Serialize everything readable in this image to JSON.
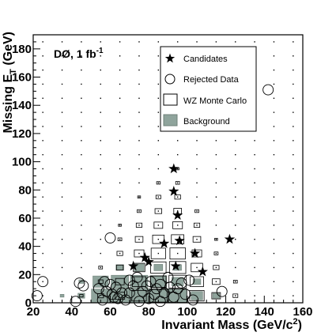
{
  "chart_data": {
    "type": "scatter",
    "annotation": "DØ, 1 fb",
    "annotation_sup": "-1",
    "xlabel": "Invariant Mass (GeV/c",
    "xlabel_sup": "2",
    "xlabel_end": ")",
    "ylabel": "Missing E",
    "ylabel_sub": "T",
    "ylabel_end": " (GeV)",
    "xlim": [
      20,
      160
    ],
    "ylim": [
      0,
      190
    ],
    "xticks": [
      20,
      40,
      60,
      80,
      100,
      120,
      140,
      160
    ],
    "yticks": [
      0,
      20,
      40,
      60,
      80,
      100,
      120,
      140,
      160,
      180
    ],
    "legend": {
      "placement": "top-right",
      "entries": [
        {
          "label": "Candidates",
          "marker": "star"
        },
        {
          "label": "Rejected Data",
          "marker": "open-circle"
        },
        {
          "label": "WZ Monte Carlo",
          "marker": "open-box"
        },
        {
          "label": "Background",
          "marker": "filled-box"
        }
      ]
    },
    "colors": {
      "background_fill": "#8fa49c",
      "background_edge": "#6f8078"
    },
    "series": [
      {
        "name": "Candidates",
        "marker": "star",
        "points": [
          [
            93,
            95
          ],
          [
            93,
            79
          ],
          [
            95,
            62
          ],
          [
            72,
            26
          ],
          [
            78,
            32
          ],
          [
            80,
            29
          ],
          [
            88,
            42
          ],
          [
            96,
            44
          ],
          [
            104,
            35
          ],
          [
            94,
            26
          ],
          [
            108,
            22
          ],
          [
            122,
            45
          ]
        ]
      },
      {
        "name": "Rejected Data",
        "marker": "open-circle",
        "points": [
          [
            22,
            5
          ],
          [
            25,
            15
          ],
          [
            42,
            1
          ],
          [
            46,
            12
          ],
          [
            44,
            14
          ],
          [
            54,
            10
          ],
          [
            57,
            15
          ],
          [
            60,
            13
          ],
          [
            58,
            8
          ],
          [
            62,
            4
          ],
          [
            60,
            46
          ],
          [
            63,
            11
          ],
          [
            66,
            7
          ],
          [
            68,
            2
          ],
          [
            70,
            16
          ],
          [
            72,
            12
          ],
          [
            74,
            18
          ],
          [
            77,
            8
          ],
          [
            79,
            12
          ],
          [
            80,
            3
          ],
          [
            81,
            15
          ],
          [
            84,
            10
          ],
          [
            86,
            13
          ],
          [
            88,
            7
          ],
          [
            90,
            18
          ],
          [
            91,
            11
          ],
          [
            93,
            4
          ],
          [
            95,
            10
          ],
          [
            97,
            14
          ],
          [
            99,
            6
          ],
          [
            101,
            16
          ],
          [
            103,
            2
          ],
          [
            64,
            3
          ],
          [
            56,
            2
          ],
          [
            75,
            1
          ],
          [
            86,
            1
          ],
          [
            118,
            8
          ],
          [
            142,
            151
          ],
          [
            61,
            6
          ],
          [
            70,
            7
          ],
          [
            83,
            6
          ]
        ]
      },
      {
        "name": "WZ Monte Carlo",
        "marker": "open-box",
        "points": [
          {
            "x": 85,
            "y": 5,
            "w": 0.9
          },
          {
            "x": 85,
            "y": 15,
            "w": 0.8
          },
          {
            "x": 85,
            "y": 25,
            "w": 0.8
          },
          {
            "x": 85,
            "y": 35,
            "w": 0.75
          },
          {
            "x": 85,
            "y": 45,
            "w": 0.6
          },
          {
            "x": 85,
            "y": 55,
            "w": 0.45
          },
          {
            "x": 85,
            "y": 65,
            "w": 0.35
          },
          {
            "x": 85,
            "y": 75,
            "w": 0.25
          },
          {
            "x": 85,
            "y": 85,
            "w": 0.18
          },
          {
            "x": 95,
            "y": 5,
            "w": 0.95
          },
          {
            "x": 95,
            "y": 15,
            "w": 0.9
          },
          {
            "x": 95,
            "y": 25,
            "w": 0.85
          },
          {
            "x": 95,
            "y": 35,
            "w": 0.8
          },
          {
            "x": 95,
            "y": 45,
            "w": 0.65
          },
          {
            "x": 95,
            "y": 55,
            "w": 0.5
          },
          {
            "x": 95,
            "y": 65,
            "w": 0.4
          },
          {
            "x": 95,
            "y": 75,
            "w": 0.3
          },
          {
            "x": 95,
            "y": 85,
            "w": 0.2
          },
          {
            "x": 95,
            "y": 95,
            "w": 0.15
          },
          {
            "x": 75,
            "y": 5,
            "w": 0.75
          },
          {
            "x": 75,
            "y": 15,
            "w": 0.7
          },
          {
            "x": 75,
            "y": 25,
            "w": 0.6
          },
          {
            "x": 75,
            "y": 35,
            "w": 0.5
          },
          {
            "x": 75,
            "y": 45,
            "w": 0.4
          },
          {
            "x": 75,
            "y": 55,
            "w": 0.3
          },
          {
            "x": 75,
            "y": 65,
            "w": 0.2
          },
          {
            "x": 75,
            "y": 75,
            "w": 0.15
          },
          {
            "x": 105,
            "y": 5,
            "w": 0.75
          },
          {
            "x": 105,
            "y": 15,
            "w": 0.7
          },
          {
            "x": 105,
            "y": 25,
            "w": 0.6
          },
          {
            "x": 105,
            "y": 35,
            "w": 0.5
          },
          {
            "x": 105,
            "y": 45,
            "w": 0.4
          },
          {
            "x": 105,
            "y": 55,
            "w": 0.3
          },
          {
            "x": 105,
            "y": 65,
            "w": 0.2
          },
          {
            "x": 65,
            "y": 5,
            "w": 0.5
          },
          {
            "x": 65,
            "y": 15,
            "w": 0.45
          },
          {
            "x": 65,
            "y": 25,
            "w": 0.35
          },
          {
            "x": 65,
            "y": 35,
            "w": 0.3
          },
          {
            "x": 65,
            "y": 45,
            "w": 0.2
          },
          {
            "x": 65,
            "y": 55,
            "w": 0.15
          },
          {
            "x": 115,
            "y": 5,
            "w": 0.45
          },
          {
            "x": 115,
            "y": 15,
            "w": 0.4
          },
          {
            "x": 115,
            "y": 25,
            "w": 0.3
          },
          {
            "x": 115,
            "y": 35,
            "w": 0.2
          },
          {
            "x": 115,
            "y": 45,
            "w": 0.15
          },
          {
            "x": 55,
            "y": 5,
            "w": 0.3
          },
          {
            "x": 55,
            "y": 15,
            "w": 0.25
          },
          {
            "x": 55,
            "y": 25,
            "w": 0.2
          },
          {
            "x": 125,
            "y": 5,
            "w": 0.25
          },
          {
            "x": 125,
            "y": 15,
            "w": 0.2
          },
          {
            "x": 45,
            "y": 5,
            "w": 0.18
          }
        ]
      },
      {
        "name": "Background",
        "marker": "filled-box",
        "points": [
          {
            "x": 55,
            "y": 5,
            "w": 0.95
          },
          {
            "x": 65,
            "y": 5,
            "w": 1.0
          },
          {
            "x": 75,
            "y": 5,
            "w": 1.0
          },
          {
            "x": 85,
            "y": 5,
            "w": 1.0
          },
          {
            "x": 95,
            "y": 5,
            "w": 0.95
          },
          {
            "x": 105,
            "y": 5,
            "w": 0.6
          },
          {
            "x": 115,
            "y": 5,
            "w": 0.35
          },
          {
            "x": 55,
            "y": 15,
            "w": 0.8
          },
          {
            "x": 65,
            "y": 15,
            "w": 0.9
          },
          {
            "x": 75,
            "y": 15,
            "w": 0.9
          },
          {
            "x": 85,
            "y": 15,
            "w": 0.85
          },
          {
            "x": 95,
            "y": 15,
            "w": 0.6
          },
          {
            "x": 105,
            "y": 15,
            "w": 0.4
          },
          {
            "x": 65,
            "y": 25,
            "w": 0.4
          },
          {
            "x": 75,
            "y": 25,
            "w": 0.5
          },
          {
            "x": 85,
            "y": 25,
            "w": 0.45
          },
          {
            "x": 95,
            "y": 25,
            "w": 0.4
          },
          {
            "x": 45,
            "y": 5,
            "w": 0.35
          },
          {
            "x": 45,
            "y": 15,
            "w": 0.25
          },
          {
            "x": 35,
            "y": 5,
            "w": 0.2
          }
        ]
      }
    ],
    "grid_dots": true
  }
}
